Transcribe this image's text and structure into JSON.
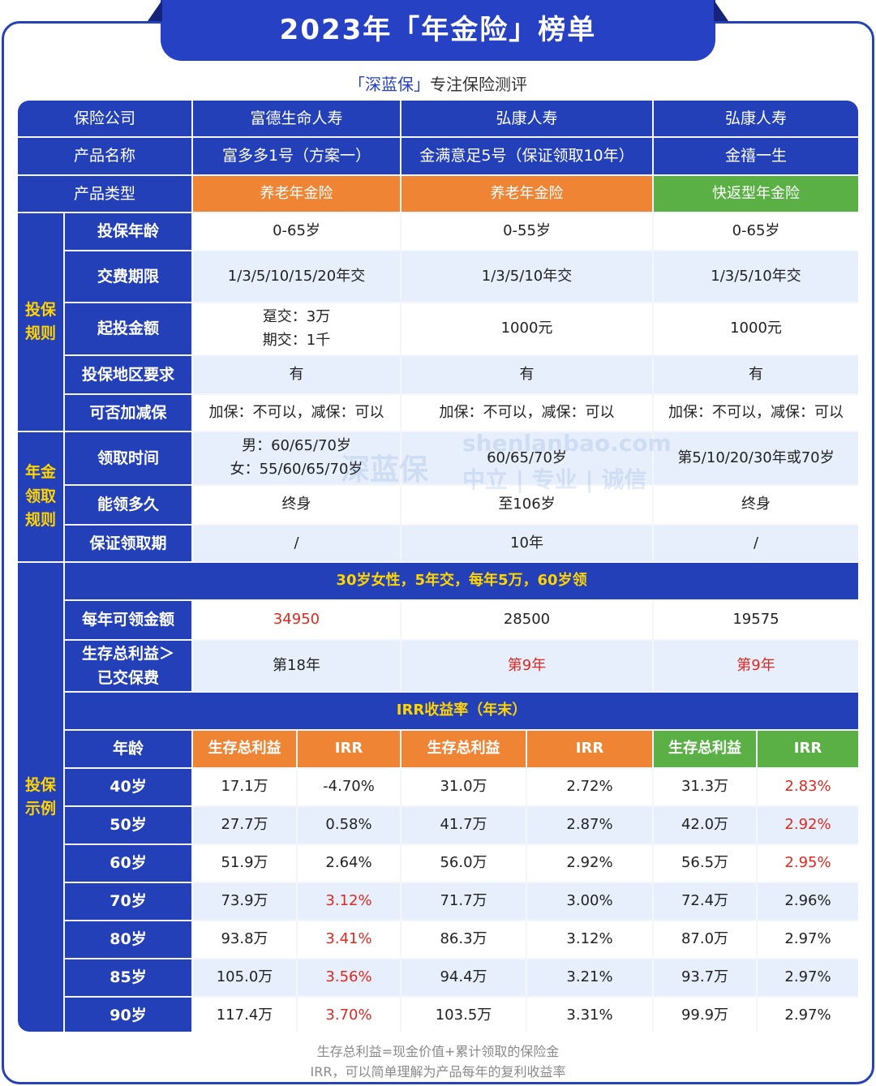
{
  "header": {
    "title": "2023年「年金险」榜单",
    "brand": "「深蓝保」",
    "tagline": "专注保险测评"
  },
  "table": {
    "label_company": "保险公司",
    "label_product": "产品名称",
    "label_type": "产品类型",
    "products": [
      {
        "company": "富德生命人寿",
        "name": "富多多1号（方案一）",
        "type": "养老年金险"
      },
      {
        "company": "弘康人寿",
        "name": "金满意足5号（保证领取10年）",
        "type": "养老年金险"
      },
      {
        "company": "弘康人寿",
        "name": "金禧一生",
        "type": "快返型年金险"
      }
    ],
    "groups": {
      "insure": [
        "投保",
        "规则"
      ],
      "annuity": [
        "年金",
        "领取",
        "规则"
      ],
      "example": [
        "投保",
        "示例"
      ]
    },
    "insure_rows": [
      {
        "label": "投保年龄",
        "values": [
          "0-65岁",
          "0-55岁",
          "0-65岁"
        ]
      },
      {
        "label": "交费期限",
        "values": [
          "1/3/5/10/15/20年交",
          "1/3/5/10年交",
          "1/3/5/10年交"
        ]
      },
      {
        "label": "起投金额",
        "values": [
          [
            "趸交：3万",
            "期交：1千"
          ],
          "1000元",
          "1000元"
        ]
      },
      {
        "label": "投保地区要求",
        "values": [
          "有",
          "有",
          "有"
        ]
      },
      {
        "label": "可否加减保",
        "values": [
          "加保：不可以，减保：可以",
          "加保：不可以，减保：可以",
          "加保：不可以，减保：可以"
        ]
      }
    ],
    "annuity_rows": [
      {
        "label": "领取时间",
        "values": [
          [
            "男：60/65/70岁",
            "女：55/60/65/70岁"
          ],
          "60/65/70岁",
          "第5/10/20/30年或70岁"
        ]
      },
      {
        "label": "能领多久",
        "values": [
          "终身",
          "至106岁",
          "终身"
        ]
      },
      {
        "label": "保证领取期",
        "values": [
          "/",
          "10年",
          "/"
        ]
      }
    ],
    "example_banner": "30岁女性，5年交，每年5万，60岁领",
    "yearly_label": "每年可领金额",
    "yearly_values": [
      "34950",
      "28500",
      "19575"
    ],
    "breakeven_label": [
      "生存总利益＞",
      "已交保费"
    ],
    "breakeven_values": [
      "第18年",
      "第9年",
      "第9年"
    ],
    "irr_banner": "IRR收益率（年末）",
    "irr_header": {
      "age": "年龄",
      "benefit": "生存总利益",
      "irr": "IRR"
    },
    "irr_rows": [
      {
        "age": "40岁",
        "v": [
          "17.1万",
          "-4.70%",
          "31.0万",
          "2.72%",
          "31.3万",
          "2.83%"
        ]
      },
      {
        "age": "50岁",
        "v": [
          "27.7万",
          "0.58%",
          "41.7万",
          "2.87%",
          "42.0万",
          "2.92%"
        ]
      },
      {
        "age": "60岁",
        "v": [
          "51.9万",
          "2.64%",
          "56.0万",
          "2.92%",
          "56.5万",
          "2.95%"
        ]
      },
      {
        "age": "70岁",
        "v": [
          "73.9万",
          "3.12%",
          "71.7万",
          "3.00%",
          "72.4万",
          "2.96%"
        ]
      },
      {
        "age": "80岁",
        "v": [
          "93.8万",
          "3.41%",
          "86.3万",
          "3.12%",
          "87.0万",
          "2.97%"
        ]
      },
      {
        "age": "85岁",
        "v": [
          "105.0万",
          "3.56%",
          "94.4万",
          "3.21%",
          "93.7万",
          "2.97%"
        ]
      },
      {
        "age": "90岁",
        "v": [
          "117.4万",
          "3.70%",
          "103.5万",
          "3.31%",
          "99.9万",
          "2.97%"
        ]
      }
    ]
  },
  "watermark": {
    "logo": "深蓝保",
    "url": "shenlanbao.com",
    "slogan": "中立 | 专业 | 诚信"
  },
  "footnotes": [
    "生存总利益=现金价值+累计领取的保险金",
    "IRR，可以简单理解为产品每年的复利收益率"
  ],
  "colors": {
    "primary": "#2340b8",
    "orange": "#ee8434",
    "green": "#5aaf45",
    "highlight": "#e0281e",
    "group_text": "#ffd400"
  }
}
